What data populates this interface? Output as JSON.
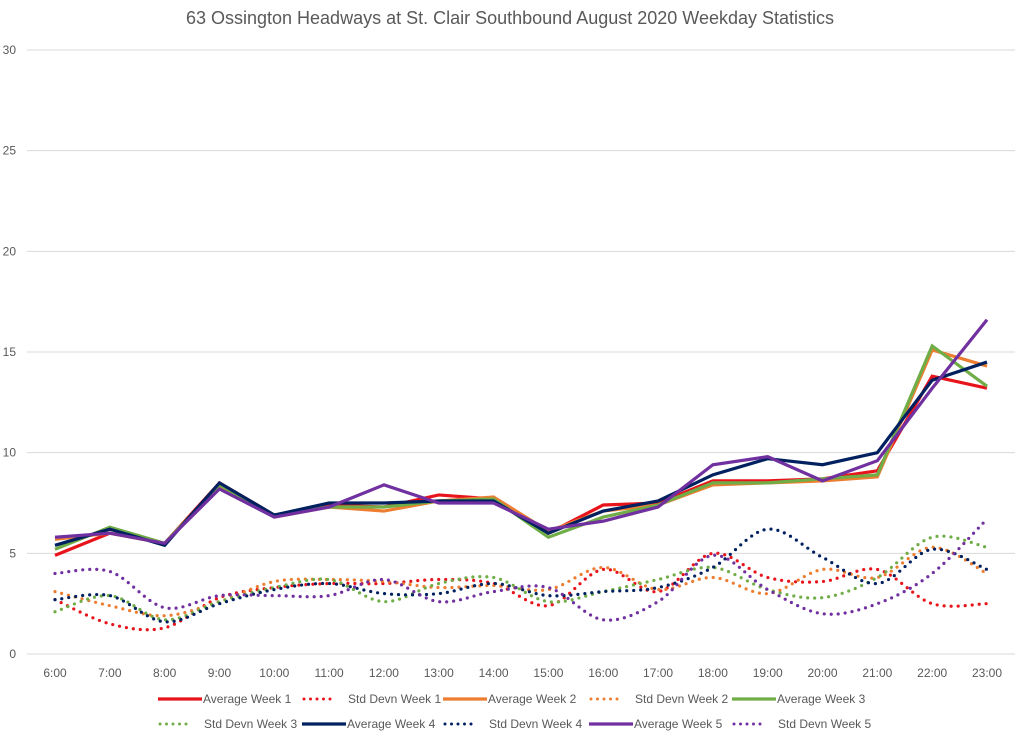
{
  "chart_data": {
    "type": "line",
    "title": "63 Ossington Headways at St. Clair Southbound August 2020 Weekday Statistics",
    "xlabel": "",
    "ylabel": "",
    "ylim": [
      0,
      30
    ],
    "yticks": [
      "0",
      "5",
      "10",
      "15",
      "20",
      "25",
      "30"
    ],
    "grid": true,
    "legend_position": "bottom",
    "categories": [
      "6:00",
      "7:00",
      "8:00",
      "9:00",
      "10:00",
      "11:00",
      "12:00",
      "13:00",
      "14:00",
      "15:00",
      "16:00",
      "17:00",
      "18:00",
      "19:00",
      "20:00",
      "21:00",
      "22:00",
      "23:00"
    ],
    "series": [
      {
        "name": "Average Week 1",
        "style": "solid",
        "color": "#e8141c",
        "values": [
          4.9,
          6.0,
          5.5,
          8.5,
          6.9,
          7.4,
          7.3,
          7.9,
          7.7,
          6.0,
          7.4,
          7.5,
          8.6,
          8.6,
          8.7,
          9.1,
          13.8,
          13.2
        ]
      },
      {
        "name": "Std Devn Week 1",
        "style": "dotted",
        "color": "#e8141c",
        "values": [
          2.7,
          1.5,
          1.3,
          2.8,
          3.3,
          3.5,
          3.5,
          3.7,
          3.5,
          2.4,
          4.2,
          3.1,
          5.0,
          3.8,
          3.6,
          4.2,
          2.5,
          2.5
        ]
      },
      {
        "name": "Average Week 2",
        "style": "solid",
        "color": "#ed7d31",
        "values": [
          5.7,
          6.0,
          5.5,
          8.3,
          6.8,
          7.3,
          7.1,
          7.6,
          7.8,
          6.1,
          7.1,
          7.4,
          8.4,
          8.5,
          8.6,
          8.8,
          15.1,
          14.3
        ]
      },
      {
        "name": "Std Devn Week 2",
        "style": "dotted",
        "color": "#ed7d31",
        "values": [
          3.1,
          2.4,
          1.9,
          2.6,
          3.6,
          3.7,
          3.6,
          3.3,
          3.4,
          3.2,
          4.3,
          3.2,
          3.8,
          3.0,
          4.2,
          3.8,
          5.3,
          4.0
        ]
      },
      {
        "name": "Average Week 3",
        "style": "solid",
        "color": "#70ad47",
        "values": [
          5.2,
          6.3,
          5.5,
          8.4,
          6.9,
          7.3,
          7.3,
          7.6,
          7.7,
          5.8,
          6.8,
          7.4,
          8.5,
          8.5,
          8.7,
          8.9,
          15.3,
          13.3
        ]
      },
      {
        "name": "Std Devn Week 3",
        "style": "dotted",
        "color": "#70ad47",
        "values": [
          2.1,
          2.9,
          1.7,
          2.6,
          3.3,
          3.7,
          2.6,
          3.5,
          3.8,
          2.6,
          3.1,
          3.7,
          4.3,
          3.2,
          2.8,
          3.8,
          5.8,
          5.3
        ]
      },
      {
        "name": "Average Week 4",
        "style": "solid",
        "color": "#002060",
        "values": [
          5.4,
          6.2,
          5.4,
          8.5,
          6.9,
          7.5,
          7.5,
          7.6,
          7.6,
          6.0,
          7.1,
          7.6,
          8.9,
          9.7,
          9.4,
          10.0,
          13.6,
          14.5
        ]
      },
      {
        "name": "Std Devn Week 4",
        "style": "dotted",
        "color": "#002060",
        "values": [
          2.7,
          2.9,
          1.6,
          2.5,
          3.2,
          3.5,
          3.0,
          3.0,
          3.5,
          2.9,
          3.1,
          3.3,
          4.3,
          6.2,
          4.8,
          3.5,
          5.2,
          4.2
        ]
      },
      {
        "name": "Average Week 5",
        "style": "solid",
        "color": "#7030a0",
        "values": [
          5.8,
          6.0,
          5.5,
          8.2,
          6.8,
          7.3,
          8.4,
          7.5,
          7.5,
          6.2,
          6.6,
          7.3,
          9.4,
          9.8,
          8.6,
          9.6,
          13.2,
          16.6
        ]
      },
      {
        "name": "Std Devn Week 5",
        "style": "dotted",
        "color": "#7030a0",
        "values": [
          4.0,
          4.1,
          2.3,
          2.9,
          2.9,
          2.9,
          3.7,
          2.6,
          3.1,
          3.3,
          1.7,
          2.6,
          4.9,
          3.2,
          2.0,
          2.5,
          4.0,
          6.7
        ]
      }
    ]
  }
}
